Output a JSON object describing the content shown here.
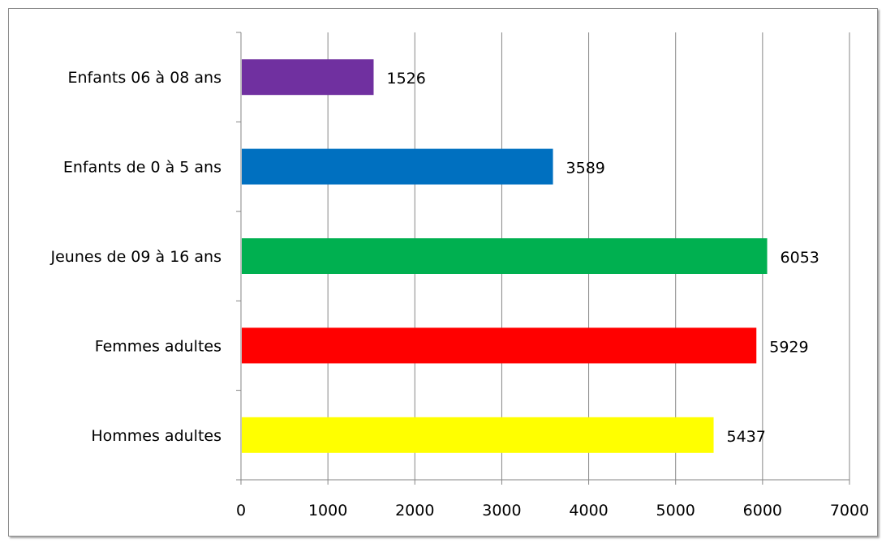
{
  "chart_data": {
    "type": "bar",
    "orientation": "horizontal",
    "categories": [
      "Enfants 06 à 08 ans",
      "Enfants de 0 à 5 ans",
      "Jeunes de 09 à 16 ans",
      "Femmes adultes",
      "Hommes adultes"
    ],
    "values": [
      1526,
      3589,
      6053,
      5929,
      5437
    ],
    "data_labels": [
      "1526",
      "3589",
      "6053",
      "5929",
      "5437"
    ],
    "colors": [
      "#7030a0",
      "#0070c0",
      "#00b050",
      "#ff0000",
      "#ffff00"
    ],
    "xlim": [
      0,
      7000
    ],
    "x_ticks": [
      0,
      1000,
      2000,
      3000,
      4000,
      5000,
      6000,
      7000
    ],
    "x_tick_labels": [
      "0",
      "1000",
      "2000",
      "3000",
      "4000",
      "5000",
      "6000",
      "7000"
    ],
    "grid": "vertical",
    "legend": "none",
    "title": "",
    "xlabel": "",
    "ylabel": ""
  }
}
